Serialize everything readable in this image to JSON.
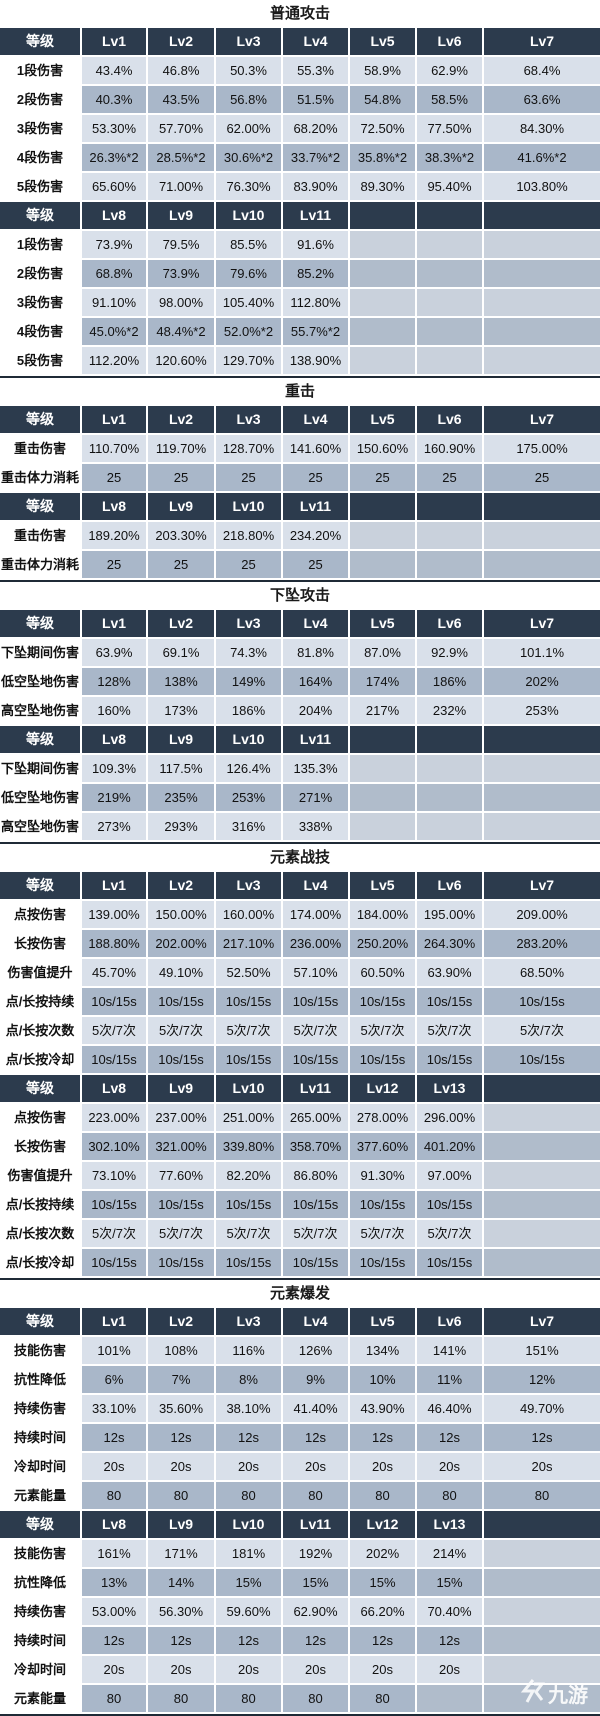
{
  "sections": [
    {
      "title": "普通攻击",
      "blocks": [
        {
          "header": [
            "等级",
            "Lv1",
            "Lv2",
            "Lv3",
            "Lv4",
            "Lv5",
            "Lv6",
            "Lv7"
          ],
          "rows": [
            [
              "1段伤害",
              "43.4%",
              "46.8%",
              "50.3%",
              "55.3%",
              "58.9%",
              "62.9%",
              "68.4%"
            ],
            [
              "2段伤害",
              "40.3%",
              "43.5%",
              "56.8%",
              "51.5%",
              "54.8%",
              "58.5%",
              "63.6%"
            ],
            [
              "3段伤害",
              "53.30%",
              "57.70%",
              "62.00%",
              "68.20%",
              "72.50%",
              "77.50%",
              "84.30%"
            ],
            [
              "4段伤害",
              "26.3%*2",
              "28.5%*2",
              "30.6%*2",
              "33.7%*2",
              "35.8%*2",
              "38.3%*2",
              "41.6%*2"
            ],
            [
              "5段伤害",
              "65.60%",
              "71.00%",
              "76.30%",
              "83.90%",
              "89.30%",
              "95.40%",
              "103.80%"
            ]
          ]
        },
        {
          "header": [
            "等级",
            "Lv8",
            "Lv9",
            "Lv10",
            "Lv11",
            "",
            "",
            ""
          ],
          "rows": [
            [
              "1段伤害",
              "73.9%",
              "79.5%",
              "85.5%",
              "91.6%",
              "",
              "",
              ""
            ],
            [
              "2段伤害",
              "68.8%",
              "73.9%",
              "79.6%",
              "85.2%",
              "",
              "",
              ""
            ],
            [
              "3段伤害",
              "91.10%",
              "98.00%",
              "105.40%",
              "112.80%",
              "",
              "",
              ""
            ],
            [
              "4段伤害",
              "45.0%*2",
              "48.4%*2",
              "52.0%*2",
              "55.7%*2",
              "",
              "",
              ""
            ],
            [
              "5段伤害",
              "112.20%",
              "120.60%",
              "129.70%",
              "138.90%",
              "",
              "",
              ""
            ]
          ]
        }
      ]
    },
    {
      "title": "重击",
      "blocks": [
        {
          "header": [
            "等级",
            "Lv1",
            "Lv2",
            "Lv3",
            "Lv4",
            "Lv5",
            "Lv6",
            "Lv7"
          ],
          "rows": [
            [
              "重击伤害",
              "110.70%",
              "119.70%",
              "128.70%",
              "141.60%",
              "150.60%",
              "160.90%",
              "175.00%"
            ],
            [
              "重击体力消耗",
              "25",
              "25",
              "25",
              "25",
              "25",
              "25",
              "25"
            ]
          ]
        },
        {
          "header": [
            "等级",
            "Lv8",
            "Lv9",
            "Lv10",
            "Lv11",
            "",
            "",
            ""
          ],
          "rows": [
            [
              "重击伤害",
              "189.20%",
              "203.30%",
              "218.80%",
              "234.20%",
              "",
              "",
              ""
            ],
            [
              "重击体力消耗",
              "25",
              "25",
              "25",
              "25",
              "",
              "",
              ""
            ]
          ]
        }
      ]
    },
    {
      "title": "下坠攻击",
      "blocks": [
        {
          "header": [
            "等级",
            "Lv1",
            "Lv2",
            "Lv3",
            "Lv4",
            "Lv5",
            "Lv6",
            "Lv7"
          ],
          "rows": [
            [
              "下坠期间伤害",
              "63.9%",
              "69.1%",
              "74.3%",
              "81.8%",
              "87.0%",
              "92.9%",
              "101.1%"
            ],
            [
              "低空坠地伤害",
              "128%",
              "138%",
              "149%",
              "164%",
              "174%",
              "186%",
              "202%"
            ],
            [
              "高空坠地伤害",
              "160%",
              "173%",
              "186%",
              "204%",
              "217%",
              "232%",
              "253%"
            ]
          ]
        },
        {
          "header": [
            "等级",
            "Lv8",
            "Lv9",
            "Lv10",
            "Lv11",
            "",
            "",
            ""
          ],
          "rows": [
            [
              "下坠期间伤害",
              "109.3%",
              "117.5%",
              "126.4%",
              "135.3%",
              "",
              "",
              ""
            ],
            [
              "低空坠地伤害",
              "219%",
              "235%",
              "253%",
              "271%",
              "",
              "",
              ""
            ],
            [
              "高空坠地伤害",
              "273%",
              "293%",
              "316%",
              "338%",
              "",
              "",
              ""
            ]
          ]
        }
      ]
    },
    {
      "title": "元素战技",
      "blocks": [
        {
          "header": [
            "等级",
            "Lv1",
            "Lv2",
            "Lv3",
            "Lv4",
            "Lv5",
            "Lv6",
            "Lv7"
          ],
          "rows": [
            [
              "点按伤害",
              "139.00%",
              "150.00%",
              "160.00%",
              "174.00%",
              "184.00%",
              "195.00%",
              "209.00%"
            ],
            [
              "长按伤害",
              "188.80%",
              "202.00%",
              "217.10%",
              "236.00%",
              "250.20%",
              "264.30%",
              "283.20%"
            ],
            [
              "伤害值提升",
              "45.70%",
              "49.10%",
              "52.50%",
              "57.10%",
              "60.50%",
              "63.90%",
              "68.50%"
            ],
            [
              "点/长按持续",
              "10s/15s",
              "10s/15s",
              "10s/15s",
              "10s/15s",
              "10s/15s",
              "10s/15s",
              "10s/15s"
            ],
            [
              "点/长按次数",
              "5次/7次",
              "5次/7次",
              "5次/7次",
              "5次/7次",
              "5次/7次",
              "5次/7次",
              "5次/7次"
            ],
            [
              "点/长按冷却",
              "10s/15s",
              "10s/15s",
              "10s/15s",
              "10s/15s",
              "10s/15s",
              "10s/15s",
              "10s/15s"
            ]
          ]
        },
        {
          "header": [
            "等级",
            "Lv8",
            "Lv9",
            "Lv10",
            "Lv11",
            "Lv12",
            "Lv13",
            ""
          ],
          "rows": [
            [
              "点按伤害",
              "223.00%",
              "237.00%",
              "251.00%",
              "265.00%",
              "278.00%",
              "296.00%",
              ""
            ],
            [
              "长按伤害",
              "302.10%",
              "321.00%",
              "339.80%",
              "358.70%",
              "377.60%",
              "401.20%",
              ""
            ],
            [
              "伤害值提升",
              "73.10%",
              "77.60%",
              "82.20%",
              "86.80%",
              "91.30%",
              "97.00%",
              ""
            ],
            [
              "点/长按持续",
              "10s/15s",
              "10s/15s",
              "10s/15s",
              "10s/15s",
              "10s/15s",
              "10s/15s",
              ""
            ],
            [
              "点/长按次数",
              "5次/7次",
              "5次/7次",
              "5次/7次",
              "5次/7次",
              "5次/7次",
              "5次/7次",
              ""
            ],
            [
              "点/长按冷却",
              "10s/15s",
              "10s/15s",
              "10s/15s",
              "10s/15s",
              "10s/15s",
              "10s/15s",
              ""
            ]
          ]
        }
      ]
    },
    {
      "title": "元素爆发",
      "blocks": [
        {
          "header": [
            "等级",
            "Lv1",
            "Lv2",
            "Lv3",
            "Lv4",
            "Lv5",
            "Lv6",
            "Lv7"
          ],
          "rows": [
            [
              "技能伤害",
              "101%",
              "108%",
              "116%",
              "126%",
              "134%",
              "141%",
              "151%"
            ],
            [
              "抗性降低",
              "6%",
              "7%",
              "8%",
              "9%",
              "10%",
              "11%",
              "12%"
            ],
            [
              "持续伤害",
              "33.10%",
              "35.60%",
              "38.10%",
              "41.40%",
              "43.90%",
              "46.40%",
              "49.70%"
            ],
            [
              "持续时间",
              "12s",
              "12s",
              "12s",
              "12s",
              "12s",
              "12s",
              "12s"
            ],
            [
              "冷却时间",
              "20s",
              "20s",
              "20s",
              "20s",
              "20s",
              "20s",
              "20s"
            ],
            [
              "元素能量",
              "80",
              "80",
              "80",
              "80",
              "80",
              "80",
              "80"
            ]
          ]
        },
        {
          "header": [
            "等级",
            "Lv8",
            "Lv9",
            "Lv10",
            "Lv11",
            "Lv12",
            "Lv13",
            ""
          ],
          "rows": [
            [
              "技能伤害",
              "161%",
              "171%",
              "181%",
              "192%",
              "202%",
              "214%",
              ""
            ],
            [
              "抗性降低",
              "13%",
              "14%",
              "15%",
              "15%",
              "15%",
              "15%",
              ""
            ],
            [
              "持续伤害",
              "53.00%",
              "56.30%",
              "59.60%",
              "62.90%",
              "66.20%",
              "70.40%",
              ""
            ],
            [
              "持续时间",
              "12s",
              "12s",
              "12s",
              "12s",
              "12s",
              "12s",
              ""
            ],
            [
              "冷却时间",
              "20s",
              "20s",
              "20s",
              "20s",
              "20s",
              "20s",
              ""
            ],
            [
              "元素能量",
              "80",
              "80",
              "80",
              "80",
              "80",
              "",
              ""
            ]
          ]
        }
      ]
    }
  ],
  "watermark": {
    "text": "九游"
  },
  "colors": {
    "header": "#2c3b4d",
    "light": "#d9e0ea",
    "mid": "#a9b7c9",
    "divider": "#1f2a36"
  }
}
